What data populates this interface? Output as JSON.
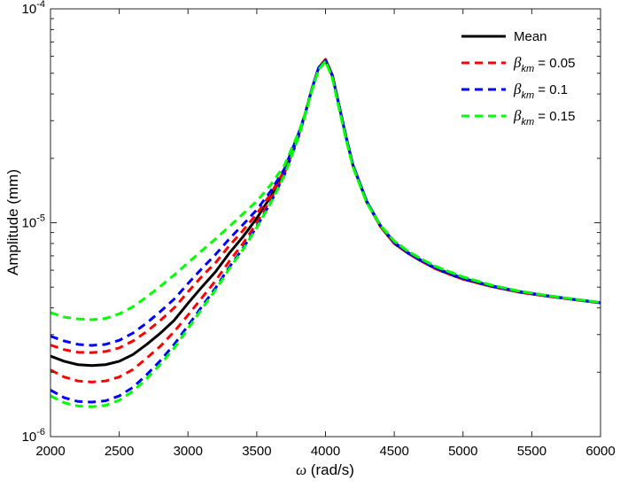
{
  "chart_data": {
    "type": "line",
    "title": "",
    "xlabel_symbol": "ω",
    "xlabel_unit": " (rad/s)",
    "ylabel": "Amplitude (mm)",
    "xlim": [
      2000,
      6000
    ],
    "ylim": [
      1e-06,
      0.0001
    ],
    "yscale": "log",
    "grid": false,
    "legend_position": "top-right",
    "x_ticks": [
      2000,
      2500,
      3000,
      3500,
      4000,
      4500,
      5000,
      5500,
      6000
    ],
    "x_tick_labels": [
      "2000",
      "2500",
      "3000",
      "3500",
      "4000",
      "4500",
      "5000",
      "5500",
      "6000"
    ],
    "y_ticks": [
      {
        "value": 1e-06,
        "base": "10",
        "exp": "-6"
      },
      {
        "value": 1e-05,
        "base": "10",
        "exp": "-5"
      },
      {
        "value": 0.0001,
        "base": "10",
        "exp": "-4"
      }
    ],
    "x": [
      2000,
      2100,
      2200,
      2300,
      2400,
      2500,
      2600,
      2700,
      2800,
      2900,
      3000,
      3100,
      3200,
      3300,
      3400,
      3500,
      3600,
      3700,
      3800,
      3850,
      3900,
      3950,
      4000,
      4050,
      4100,
      4150,
      4200,
      4300,
      4400,
      4500,
      4600,
      4700,
      4800,
      4900,
      5000,
      5200,
      5400,
      5600,
      5800,
      6000
    ],
    "series": [
      {
        "legend": "Mean",
        "color": "#000000",
        "dash": "solid",
        "values": [
          2.38e-06,
          2.25e-06,
          2.17e-06,
          2.15e-06,
          2.17e-06,
          2.25e-06,
          2.42e-06,
          2.7e-06,
          3.05e-06,
          3.5e-06,
          4.2e-06,
          5e-06,
          5.9e-06,
          7.2e-06,
          8.6e-06,
          1.05e-05,
          1.32e-05,
          1.72e-05,
          2.55e-05,
          3.2e-05,
          4.2e-05,
          5.3e-05,
          5.8e-05,
          4.9e-05,
          3.5e-05,
          2.5e-05,
          1.85e-05,
          1.25e-05,
          9.6e-06,
          8e-06,
          7.2e-06,
          6.6e-06,
          6.1e-06,
          5.75e-06,
          5.45e-06,
          5.05e-06,
          4.75e-06,
          4.55e-06,
          4.38e-06,
          4.22e-06
        ]
      },
      {
        "legend_symbol": "β",
        "legend_sub": "km",
        "legend_rest": "= 0.05",
        "color": "#ff0000",
        "dash": "dash",
        "values": [
          2.68e-06,
          2.55e-06,
          2.48e-06,
          2.47e-06,
          2.5e-06,
          2.6e-06,
          2.8e-06,
          3.1e-06,
          3.5e-06,
          4e-06,
          4.75e-06,
          5.6e-06,
          6.5e-06,
          7.8e-06,
          9.2e-06,
          1.1e-05,
          1.36e-05,
          1.75e-05,
          2.55e-05,
          3.2e-05,
          4.2e-05,
          5.3e-05,
          5.8e-05,
          4.9e-05,
          3.5e-05,
          2.5e-05,
          1.85e-05,
          1.25e-05,
          9.6e-06,
          8e-06,
          7.2e-06,
          6.6e-06,
          6.1e-06,
          5.75e-06,
          5.45e-06,
          5.05e-06,
          4.75e-06,
          4.55e-06,
          4.38e-06,
          4.22e-06
        ]
      },
      {
        "color": "#ff0000",
        "dash": "dash",
        "values": [
          2.05e-06,
          1.9e-06,
          1.82e-06,
          1.8e-06,
          1.82e-06,
          1.9e-06,
          2.06e-06,
          2.33e-06,
          2.65e-06,
          3.1e-06,
          3.7e-06,
          4.45e-06,
          5.35e-06,
          6.6e-06,
          8e-06,
          1e-05,
          1.28e-05,
          1.7e-05,
          2.5e-05,
          3.2e-05,
          4.2e-05,
          5.3e-05,
          5.8e-05,
          4.9e-05,
          3.5e-05,
          2.5e-05,
          1.85e-05,
          1.25e-05,
          9.6e-06,
          8e-06,
          7.2e-06,
          6.6e-06,
          6.1e-06,
          5.75e-06,
          5.45e-06,
          5.05e-06,
          4.75e-06,
          4.55e-06,
          4.38e-06,
          4.22e-06
        ]
      },
      {
        "legend_symbol": "β",
        "legend_sub": "km",
        "legend_rest": "= 0.1",
        "color": "#0000ff",
        "dash": "dash",
        "values": [
          2.95e-06,
          2.8e-06,
          2.7e-06,
          2.67e-06,
          2.7e-06,
          2.82e-06,
          3.05e-06,
          3.4e-06,
          3.85e-06,
          4.4e-06,
          5.2e-06,
          6.1e-06,
          7.1e-06,
          8.4e-06,
          9.8e-06,
          1.15e-05,
          1.4e-05,
          1.78e-05,
          2.57e-05,
          3.2e-05,
          4.2e-05,
          5.3e-05,
          5.75e-05,
          4.85e-05,
          3.5e-05,
          2.52e-05,
          1.86e-05,
          1.26e-05,
          9.7e-06,
          8.1e-06,
          7.25e-06,
          6.65e-06,
          6.15e-06,
          5.8e-06,
          5.5e-06,
          5.08e-06,
          4.78e-06,
          4.57e-06,
          4.39e-06,
          4.23e-06
        ]
      },
      {
        "color": "#0000ff",
        "dash": "dash",
        "values": [
          1.65e-06,
          1.52e-06,
          1.46e-06,
          1.45e-06,
          1.47e-06,
          1.55e-06,
          1.7e-06,
          1.95e-06,
          2.27e-06,
          2.7e-06,
          3.3e-06,
          4.05e-06,
          4.95e-06,
          6.2e-06,
          7.6e-06,
          9.6e-06,
          1.24e-05,
          1.67e-05,
          2.48e-05,
          3.18e-05,
          4.2e-05,
          5.3e-05,
          5.75e-05,
          4.85e-05,
          3.5e-05,
          2.52e-05,
          1.86e-05,
          1.26e-05,
          9.7e-06,
          8.1e-06,
          7.25e-06,
          6.65e-06,
          6.15e-06,
          5.8e-06,
          5.5e-06,
          5.08e-06,
          4.78e-06,
          4.57e-06,
          4.39e-06,
          4.23e-06
        ]
      },
      {
        "legend_symbol": "β",
        "legend_sub": "km",
        "legend_rest": "= 0.15",
        "color": "#00ff00",
        "dash": "dash",
        "values": [
          3.8e-06,
          3.62e-06,
          3.55e-06,
          3.52e-06,
          3.57e-06,
          3.75e-06,
          4.05e-06,
          4.5e-06,
          5.05e-06,
          5.7e-06,
          6.5e-06,
          7.4e-06,
          8.4e-06,
          9.6e-06,
          1.1e-05,
          1.26e-05,
          1.5e-05,
          1.85e-05,
          2.6e-05,
          3.2e-05,
          4.15e-05,
          5.2e-05,
          5.7e-05,
          4.75e-05,
          3.4e-05,
          2.45e-05,
          1.82e-05,
          1.24e-05,
          9.7e-06,
          8.2e-06,
          7.35e-06,
          6.75e-06,
          6.25e-06,
          5.9e-06,
          5.58e-06,
          5.12e-06,
          4.8e-06,
          4.58e-06,
          4.4e-06,
          4.24e-06
        ]
      },
      {
        "color": "#00ff00",
        "dash": "dash",
        "values": [
          1.55e-06,
          1.44e-06,
          1.39e-06,
          1.38e-06,
          1.4e-06,
          1.48e-06,
          1.63e-06,
          1.87e-06,
          2.18e-06,
          2.6e-06,
          3.2e-06,
          3.95e-06,
          4.85e-06,
          6.1e-06,
          7.5e-06,
          9.5e-06,
          1.23e-05,
          1.66e-05,
          2.47e-05,
          3.15e-05,
          4.15e-05,
          5.2e-05,
          5.7e-05,
          4.75e-05,
          3.4e-05,
          2.45e-05,
          1.82e-05,
          1.24e-05,
          9.7e-06,
          8.2e-06,
          7.35e-06,
          6.75e-06,
          6.25e-06,
          5.9e-06,
          5.58e-06,
          5.12e-06,
          4.8e-06,
          4.58e-06,
          4.4e-06,
          4.24e-06
        ]
      }
    ]
  }
}
